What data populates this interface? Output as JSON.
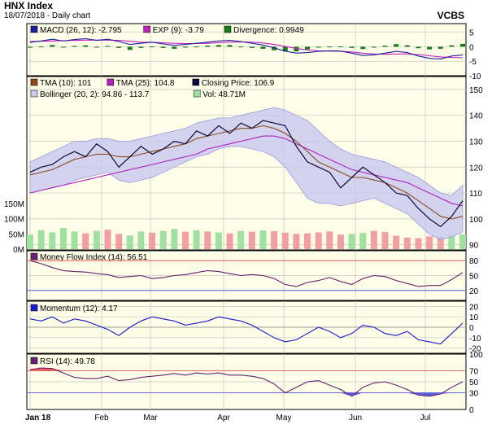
{
  "header": {
    "title": "HNX Index",
    "subtitle": "18/07/2018 - Daily chart",
    "brand": "VCBS"
  },
  "colors": {
    "panel_bg": "#fdfde8",
    "grid": "#c8c8c8",
    "macd": "#1e1e9c",
    "exp": "#c020c0",
    "divergence": "#1a7a1a",
    "tma10": "#8b4a1e",
    "tma25": "#b020c0",
    "price": "#0a0a3c",
    "bollinger_fill": "#c8c8f0",
    "bollinger_line": "#9a9ae0",
    "volume_up": "#a0e0a0",
    "volume_down": "#f0a0a0",
    "mfi": "#6a2070",
    "momentum": "#1a1ad0",
    "rsi": "#6a2070",
    "overbought": "#e04040",
    "oversold": "#4040e0"
  },
  "panels": {
    "macd": {
      "legend": [
        {
          "label": "MACD (26, 12): -2.795",
          "color": "#1e1e9c"
        },
        {
          "label": "EXP (9): -3.79",
          "color": "#c020c0"
        },
        {
          "label": "Divergence: 0.9949",
          "color": "#1a7a1a"
        }
      ],
      "y_ticks": [
        "5",
        "0",
        "-5",
        "-10"
      ]
    },
    "price": {
      "legend_row1": [
        {
          "label": "TMA (10): 101",
          "color": "#8b4a1e"
        },
        {
          "label": "TMA (25): 104.8",
          "color": "#b020c0"
        },
        {
          "label": "Closing Price: 106.9",
          "color": "#0a0a3c"
        }
      ],
      "legend_row2": [
        {
          "label": "Bollinger (20, 2): 94.86 - 113.7",
          "color": "#c8c8f0"
        },
        {
          "label": "Vol: 48.71M",
          "color": "#a0e0a0"
        }
      ],
      "y_ticks": [
        "150",
        "140",
        "130",
        "120",
        "110",
        "100",
        "90"
      ],
      "volume_ticks": [
        "150M",
        "100M",
        "50M",
        "0M"
      ]
    },
    "mfi": {
      "legend": [
        {
          "label": "Money Flow Index (14): 56.51",
          "color": "#6a2070"
        }
      ],
      "y_ticks": [
        "80",
        "50",
        "20"
      ]
    },
    "momentum": {
      "legend": [
        {
          "label": "Momentum (12): 4.17",
          "color": "#1a1ad0"
        }
      ],
      "y_ticks": [
        "20",
        "10",
        "0",
        "-10",
        "-20"
      ]
    },
    "rsi": {
      "legend": [
        {
          "label": "RSI (14): 49.78",
          "color": "#6a2070"
        }
      ],
      "y_ticks": [
        "100",
        "70",
        "50",
        "30",
        "0"
      ]
    }
  },
  "x_axis": [
    "Jan 18",
    "Feb",
    "Mar",
    "Apr",
    "May",
    "Jun",
    "Jul"
  ],
  "chart_data": [
    {
      "type": "line",
      "title": "MACD",
      "ylim": [
        -10,
        8
      ],
      "series": [
        {
          "name": "MACD (26, 12): -2.795",
          "values": [
            1.5,
            2.0,
            2.6,
            2.0,
            2.5,
            2.8,
            2.2,
            2.6,
            1.8,
            0.8,
            1.2,
            1.6,
            1.0,
            0.5,
            0.8,
            1.2,
            1.6,
            2.0,
            2.2,
            1.8,
            1.2,
            0.6,
            -0.4,
            -1.5,
            -2.2,
            -2.0,
            -1.6,
            -1.4,
            -1.5,
            -2.2,
            -3.0,
            -2.8,
            -2.2,
            -1.6,
            -2.0,
            -3.2,
            -4.0,
            -4.2,
            -3.2,
            -2.8
          ]
        },
        {
          "name": "EXP (9): -3.79",
          "values": [
            1.8,
            1.9,
            2.0,
            2.1,
            2.2,
            2.3,
            2.3,
            2.3,
            2.2,
            1.9,
            1.6,
            1.5,
            1.4,
            1.2,
            1.1,
            1.1,
            1.2,
            1.4,
            1.6,
            1.7,
            1.6,
            1.3,
            0.8,
            0.1,
            -0.6,
            -1.1,
            -1.4,
            -1.5,
            -1.6,
            -1.8,
            -2.2,
            -2.5,
            -2.6,
            -2.5,
            -2.5,
            -2.7,
            -3.1,
            -3.5,
            -3.7,
            -3.8
          ]
        },
        {
          "name": "Divergence: 0.9949",
          "values": [
            -0.3,
            0.1,
            0.6,
            -0.1,
            0.3,
            0.5,
            -0.1,
            0.3,
            -0.4,
            -1.1,
            -0.4,
            0.1,
            -0.4,
            -0.7,
            -0.3,
            0.1,
            0.4,
            0.6,
            0.6,
            0.1,
            -0.4,
            -0.7,
            -1.2,
            -1.6,
            -1.6,
            -0.9,
            -0.2,
            0.1,
            0.1,
            -0.4,
            -0.8,
            -0.3,
            0.4,
            0.9,
            0.5,
            -0.5,
            -0.9,
            -0.7,
            0.5,
            1.0
          ]
        }
      ]
    },
    {
      "type": "line",
      "title": "Price",
      "ylim": [
        88,
        155
      ],
      "series": [
        {
          "name": "Closing Price: 106.9",
          "values": [
            118,
            120,
            121,
            124,
            126,
            124,
            129,
            126,
            120,
            124,
            128,
            125,
            127,
            130,
            129,
            134,
            132,
            136,
            133,
            137,
            135,
            138,
            137,
            136,
            128,
            122,
            120,
            118,
            112,
            116,
            120,
            117,
            114,
            110,
            109,
            104,
            100,
            97,
            101,
            107
          ]
        },
        {
          "name": "TMA (10): 101",
          "values": [
            117,
            118,
            119,
            121,
            123,
            124,
            125,
            125,
            124,
            124,
            125,
            126,
            127,
            128,
            129,
            131,
            132,
            133,
            134,
            135,
            135,
            136,
            135,
            133,
            130,
            126,
            122,
            120,
            118,
            116,
            116,
            115,
            114,
            112,
            110,
            107,
            104,
            101,
            100,
            101
          ]
        },
        {
          "name": "TMA (25): 104.8",
          "values": [
            110,
            111,
            112,
            113,
            114,
            115,
            116,
            117,
            118,
            119,
            120,
            121,
            122,
            123,
            124,
            125,
            127,
            128,
            129,
            130,
            131,
            132,
            132,
            131,
            129,
            127,
            125,
            123,
            121,
            119,
            118,
            117,
            116,
            115,
            114,
            112,
            110,
            108,
            106,
            105
          ]
        },
        {
          "name": "Bollinger Upper",
          "values": [
            122,
            124,
            126,
            128,
            130,
            130,
            131,
            131,
            130,
            130,
            131,
            132,
            133,
            134,
            135,
            137,
            138,
            139,
            139,
            140,
            141,
            142,
            143,
            142,
            140,
            138,
            134,
            130,
            127,
            125,
            124,
            123,
            122,
            120,
            118,
            116,
            113,
            110,
            109,
            113
          ]
        },
        {
          "name": "Bollinger Lower",
          "values": [
            110,
            111,
            112,
            113,
            115,
            116,
            117,
            118,
            115,
            114,
            115,
            116,
            118,
            120,
            122,
            124,
            125,
            127,
            128,
            128,
            127,
            126,
            124,
            120,
            114,
            108,
            106,
            106,
            105,
            106,
            107,
            108,
            106,
            104,
            102,
            98,
            94,
            92,
            93,
            95
          ]
        }
      ]
    },
    {
      "type": "bar",
      "title": "Volume",
      "ylim": [
        0,
        150
      ],
      "values": [
        48,
        62,
        55,
        70,
        58,
        52,
        60,
        64,
        50,
        45,
        58,
        54,
        60,
        66,
        57,
        62,
        58,
        55,
        52,
        60,
        57,
        61,
        59,
        54,
        50,
        52,
        55,
        58,
        48,
        50,
        53,
        60,
        56,
        44,
        38,
        36,
        42,
        40,
        47,
        49
      ]
    },
    {
      "type": "line",
      "title": "Money Flow Index (14): 56.51",
      "ylim": [
        0,
        100
      ],
      "values": [
        80,
        74,
        66,
        60,
        58,
        57,
        54,
        52,
        46,
        48,
        50,
        44,
        46,
        50,
        52,
        56,
        60,
        58,
        54,
        50,
        52,
        50,
        44,
        32,
        28,
        36,
        40,
        46,
        38,
        32,
        44,
        50,
        48,
        40,
        34,
        28,
        30,
        30,
        42,
        56
      ]
    },
    {
      "type": "line",
      "title": "Momentum (12): 4.17",
      "ylim": [
        -25,
        25
      ],
      "values": [
        8,
        6,
        10,
        4,
        8,
        6,
        2,
        -2,
        -8,
        0,
        6,
        10,
        8,
        6,
        2,
        4,
        6,
        10,
        8,
        6,
        2,
        -4,
        -10,
        -14,
        -12,
        -6,
        0,
        -4,
        -10,
        -6,
        2,
        0,
        -6,
        -8,
        -4,
        -12,
        -14,
        -16,
        -6,
        4
      ]
    },
    {
      "type": "line",
      "title": "RSI (14): 49.78",
      "ylim": [
        0,
        100
      ],
      "values": [
        72,
        75,
        74,
        66,
        58,
        56,
        56,
        60,
        52,
        54,
        58,
        60,
        62,
        65,
        62,
        66,
        64,
        66,
        62,
        62,
        60,
        56,
        46,
        30,
        40,
        50,
        52,
        44,
        36,
        24,
        40,
        48,
        50,
        44,
        36,
        26,
        24,
        28,
        40,
        50
      ]
    }
  ]
}
